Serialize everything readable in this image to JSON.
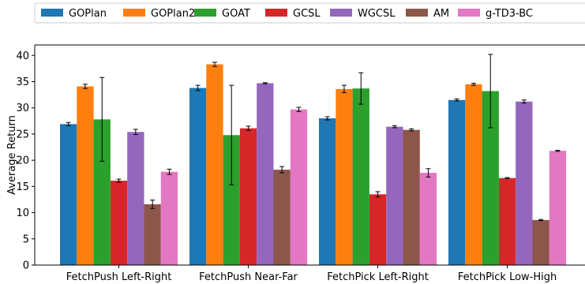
{
  "chart_data": {
    "type": "bar",
    "title": "",
    "xlabel": "",
    "ylabel": "Average Return",
    "ylim": [
      0,
      42
    ],
    "yticks": [
      0,
      5,
      10,
      15,
      20,
      25,
      30,
      35,
      40
    ],
    "grid": false,
    "legend_position": "top",
    "categories": [
      "FetchPush Left-Right",
      "FetchPush Near-Far",
      "FetchPick Left-Right",
      "FetchPick Low-High"
    ],
    "series": [
      {
        "name": "GOPlan",
        "color": "#1f77b4",
        "values": [
          26.9,
          33.8,
          28.0,
          31.5
        ],
        "errors": [
          0.3,
          0.5,
          0.3,
          0.2
        ]
      },
      {
        "name": "GOPlan2",
        "color": "#ff7f0e",
        "values": [
          34.1,
          38.3,
          33.6,
          34.5
        ],
        "errors": [
          0.4,
          0.4,
          0.7,
          0.2
        ]
      },
      {
        "name": "GOAT",
        "color": "#2ca02c",
        "values": [
          27.8,
          24.8,
          33.7,
          33.2
        ],
        "errors": [
          8.0,
          9.5,
          3.0,
          7.0
        ]
      },
      {
        "name": "GCSL",
        "color": "#d62728",
        "values": [
          16.1,
          26.1,
          13.5,
          16.6
        ],
        "errors": [
          0.3,
          0.4,
          0.5,
          0.1
        ]
      },
      {
        "name": "WGCSL",
        "color": "#9467bd",
        "values": [
          25.4,
          34.7,
          26.4,
          31.2
        ],
        "errors": [
          0.5,
          0.1,
          0.2,
          0.3
        ]
      },
      {
        "name": "AM",
        "color": "#8c564b",
        "values": [
          11.6,
          18.2,
          25.8,
          8.6
        ],
        "errors": [
          0.8,
          0.6,
          0.2,
          0.1
        ]
      },
      {
        "name": "g-TD3-BC",
        "color": "#e377c2",
        "values": [
          17.8,
          29.7,
          17.6,
          21.8
        ],
        "errors": [
          0.5,
          0.4,
          0.8,
          0.1
        ]
      }
    ]
  }
}
